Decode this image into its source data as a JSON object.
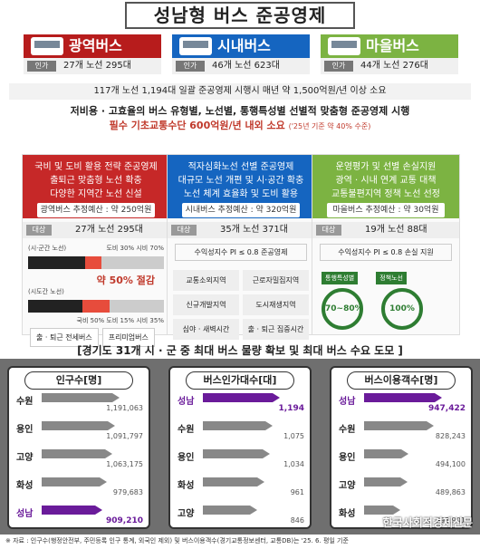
{
  "title": "성남형 버스 준공영제",
  "categories": [
    {
      "name": "광역버스",
      "tag": "인가",
      "info": "27개 노선 295대",
      "color": "#b71c1c"
    },
    {
      "name": "시내버스",
      "tag": "인가",
      "info": "46개 노선 623대",
      "color": "#1565c0"
    },
    {
      "name": "마을버스",
      "tag": "인가",
      "info": "44개 노선 276대",
      "color": "#7cb342"
    }
  ],
  "summary": "117개 노선 1,194대 일괄 준공영제 시행시 매년 약 1,500억원/년 이상 소요",
  "policy": "저비용 · 고효율의 버스 유형별, 노선별, 통행특성별 선별적 맞춤형 준공영제 시행",
  "policy2": "필수 기초교통수단 600억원/년 내외 소요",
  "policy2_note": "('25년 기준 약 40% 수준)",
  "panels": {
    "p1": {
      "desc": "국비 및 도비 활용 전략 준공영제\n출퇴근 맞춤형 노선 확충\n다양한 지역간 노선 신설",
      "budget": "광역버스 추정예산 : 약 250억원",
      "tag": "대상",
      "count": "27개 노선 295대",
      "bar1_label": "(시·군간 노선)",
      "bar1_note": "도비 30% 시비 70%",
      "bar2_label": "(시도간 노선)",
      "bar2_note": "국비 50% 도비 15% 시비 35%",
      "cut": "약 50% 절감",
      "chip1": "출 · 퇴근 전세버스",
      "chip2": "프리미엄버스"
    },
    "p2": {
      "desc": "적자심화노선 선별 준공영제\n대규모 노선 개편 및 시·공간 확충\n노선 체계 효율화 및 도비 활용",
      "budget": "시내버스 추정예산 : 약 320억원",
      "tag": "대상",
      "count": "35개 노선 371대",
      "crit": "수익성지수 PI ≤ 0.8 준공영제",
      "c1": "교통소외지역",
      "c2": "근로자밀집지역",
      "c3": "신규개발지역",
      "c4": "도시재생지역",
      "c5": "심야 · 새벽시간",
      "c6": "출 · 퇴근 집중시간"
    },
    "p3": {
      "desc": "운영평가 및 선별 손실지원\n광역 · 시내 연계 교통 대책\n교통불편지역 정책 노선 선정",
      "budget": "마을버스 추정예산 : 약 30억원",
      "tag": "대상",
      "count": "19개 노선 88대",
      "crit": "수익성지수 PI ≤ 0.8 손실 지원",
      "g1": "통행특성별",
      "g2": "정책노선",
      "v1": "70~80%",
      "v2": "100%"
    }
  },
  "section": "[경기도 31개 시 · 군 중 최대 버스 물량 확보 및 최대 버스 수요 도모 ]",
  "boxes": [
    {
      "title": "인구수[명]",
      "rows": [
        {
          "n": "수원",
          "v": "1,191,063",
          "w": 112
        },
        {
          "n": "용인",
          "v": "1,091,797",
          "w": 104
        },
        {
          "n": "고양",
          "v": "1,063,175",
          "w": 100
        },
        {
          "n": "화성",
          "v": "979,683",
          "w": 92
        },
        {
          "n": "성남",
          "v": "909,210",
          "w": 84,
          "hl": true
        }
      ]
    },
    {
      "title": "버스인가대수[대]",
      "rows": [
        {
          "n": "성남",
          "v": "1,194",
          "w": 110,
          "hl": true
        },
        {
          "n": "수원",
          "v": "1,075",
          "w": 98
        },
        {
          "n": "용인",
          "v": "1,034",
          "w": 94
        },
        {
          "n": "화성",
          "v": "961",
          "w": 86
        },
        {
          "n": "고양",
          "v": "846",
          "w": 74
        }
      ]
    },
    {
      "title": "버스이용객수[명]",
      "rows": [
        {
          "n": "성남",
          "v": "947,422",
          "w": 112,
          "hl": true
        },
        {
          "n": "수원",
          "v": "828,243",
          "w": 98
        },
        {
          "n": "용인",
          "v": "494,100",
          "w": 58
        },
        {
          "n": "고양",
          "v": "489,863",
          "w": 57
        },
        {
          "n": "화성",
          "v": "393,901",
          "w": 46
        }
      ]
    }
  ],
  "footer": "※ 자료 : 인구수(행정안전부, 주민등록 인구 통계, 외국인 제외) 및 버스이용객수(경기교통정보센터, 교통DB)는 '25. 6. 평일 기준",
  "watermark": "한국사회적경제신문"
}
